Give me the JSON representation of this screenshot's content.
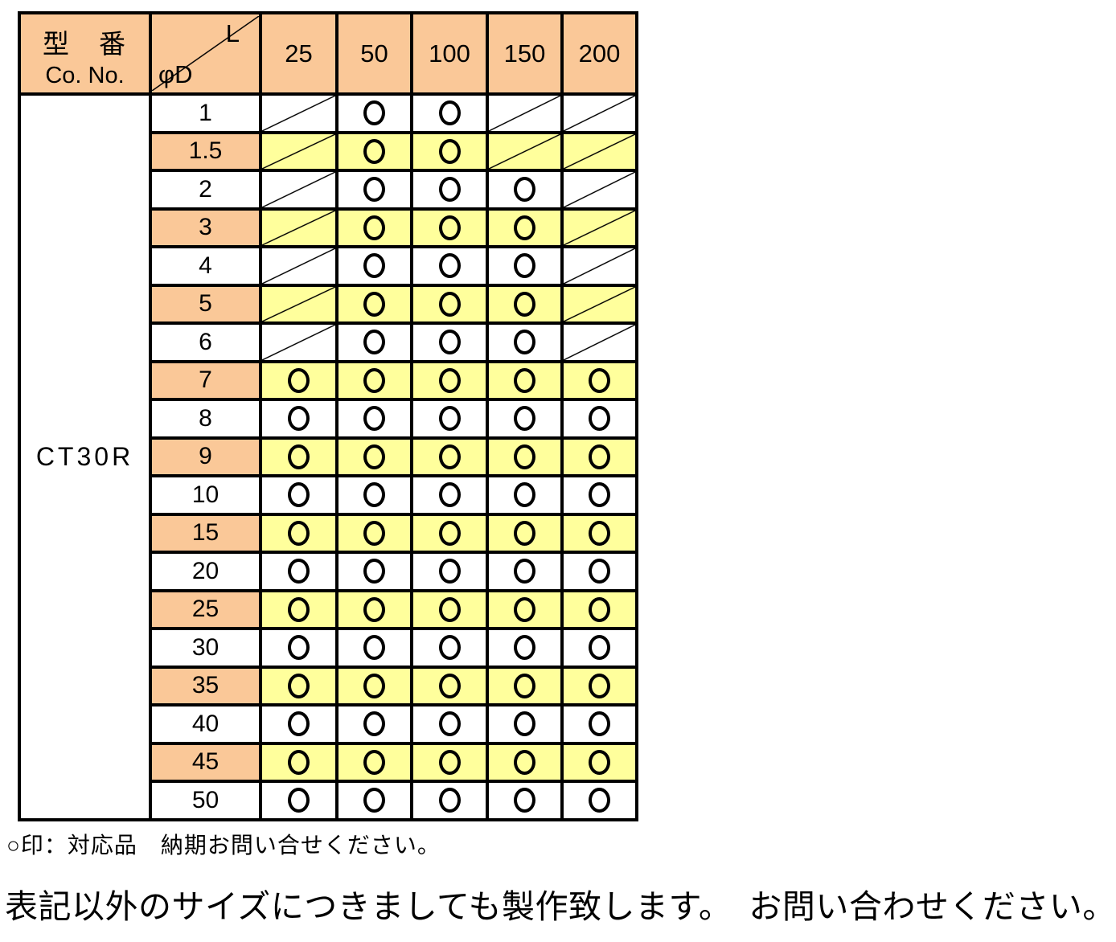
{
  "table": {
    "header": {
      "model_label": "型　番",
      "model_sublabel": "Co. No.",
      "diag_top_right": "L",
      "diag_bottom_left": "φD",
      "columns": [
        "25",
        "50",
        "100",
        "150",
        "200"
      ]
    },
    "model_no": "CT30R",
    "mark_ok": "ok",
    "mark_na": "na",
    "rows": [
      {
        "d": "1",
        "highlight": false,
        "cells": [
          "na",
          "ok",
          "ok",
          "na",
          "na"
        ]
      },
      {
        "d": "1.5",
        "highlight": true,
        "cells": [
          "na",
          "ok",
          "ok",
          "na",
          "na"
        ]
      },
      {
        "d": "2",
        "highlight": false,
        "cells": [
          "na",
          "ok",
          "ok",
          "ok",
          "na"
        ]
      },
      {
        "d": "3",
        "highlight": true,
        "cells": [
          "na",
          "ok",
          "ok",
          "ok",
          "na"
        ]
      },
      {
        "d": "4",
        "highlight": false,
        "cells": [
          "na",
          "ok",
          "ok",
          "ok",
          "na"
        ]
      },
      {
        "d": "5",
        "highlight": true,
        "cells": [
          "na",
          "ok",
          "ok",
          "ok",
          "na"
        ]
      },
      {
        "d": "6",
        "highlight": false,
        "cells": [
          "na",
          "ok",
          "ok",
          "ok",
          "na"
        ]
      },
      {
        "d": "7",
        "highlight": true,
        "cells": [
          "ok",
          "ok",
          "ok",
          "ok",
          "ok"
        ]
      },
      {
        "d": "8",
        "highlight": false,
        "cells": [
          "ok",
          "ok",
          "ok",
          "ok",
          "ok"
        ]
      },
      {
        "d": "9",
        "highlight": true,
        "cells": [
          "ok",
          "ok",
          "ok",
          "ok",
          "ok"
        ]
      },
      {
        "d": "10",
        "highlight": false,
        "cells": [
          "ok",
          "ok",
          "ok",
          "ok",
          "ok"
        ]
      },
      {
        "d": "15",
        "highlight": true,
        "cells": [
          "ok",
          "ok",
          "ok",
          "ok",
          "ok"
        ]
      },
      {
        "d": "20",
        "highlight": false,
        "cells": [
          "ok",
          "ok",
          "ok",
          "ok",
          "ok"
        ]
      },
      {
        "d": "25",
        "highlight": true,
        "cells": [
          "ok",
          "ok",
          "ok",
          "ok",
          "ok"
        ]
      },
      {
        "d": "30",
        "highlight": false,
        "cells": [
          "ok",
          "ok",
          "ok",
          "ok",
          "ok"
        ]
      },
      {
        "d": "35",
        "highlight": true,
        "cells": [
          "ok",
          "ok",
          "ok",
          "ok",
          "ok"
        ]
      },
      {
        "d": "40",
        "highlight": false,
        "cells": [
          "ok",
          "ok",
          "ok",
          "ok",
          "ok"
        ]
      },
      {
        "d": "45",
        "highlight": true,
        "cells": [
          "ok",
          "ok",
          "ok",
          "ok",
          "ok"
        ]
      },
      {
        "d": "50",
        "highlight": false,
        "cells": [
          "ok",
          "ok",
          "ok",
          "ok",
          "ok"
        ]
      }
    ]
  },
  "notes": {
    "legend": "○印：対応品　納期お問い合せください。",
    "footer": "表記以外のサイズにつきましても製作致します。　お問い合わせください。"
  },
  "colors": {
    "header_bg": "#FAC898",
    "highlight_bg": "#FFFF9C",
    "border": "#000000",
    "background": "#FFFFFF"
  }
}
